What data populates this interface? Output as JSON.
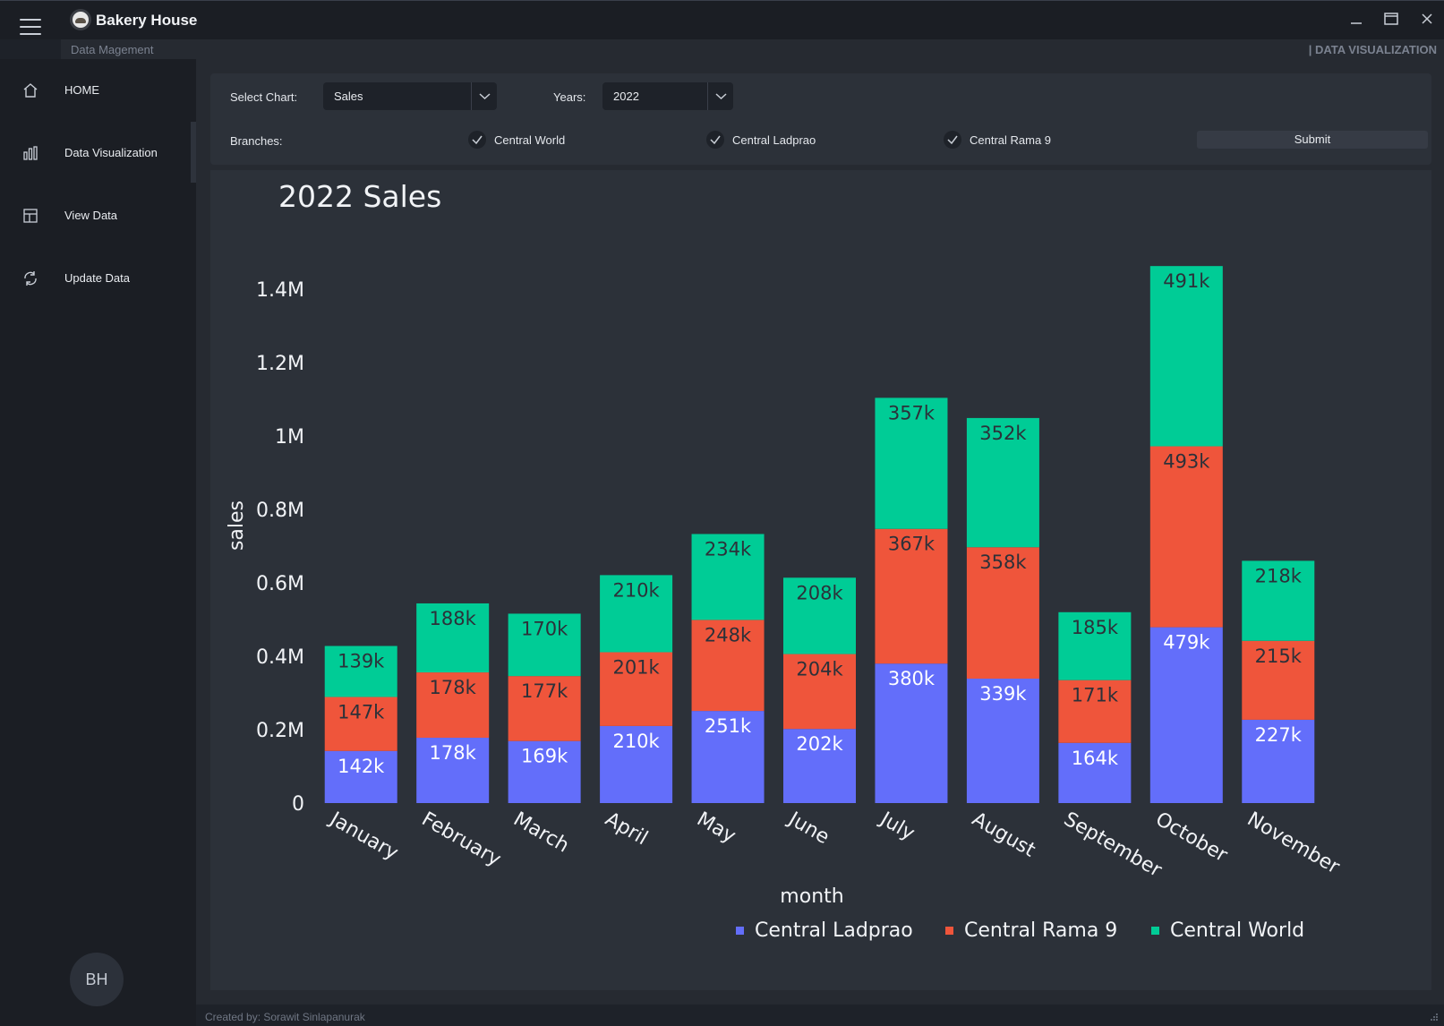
{
  "app": {
    "title": "Bakery House",
    "subtitle_left": "Data Magement",
    "subtitle_right": "| DATA VISUALIZATION"
  },
  "sidebar": {
    "items": [
      {
        "label": "HOME",
        "icon": "home-icon"
      },
      {
        "label": "Data Visualization",
        "icon": "bar-chart-icon"
      },
      {
        "label": "View Data",
        "icon": "table-icon"
      },
      {
        "label": "Update Data",
        "icon": "refresh-icon"
      }
    ],
    "active_index": 1,
    "avatar": "BH"
  },
  "controls": {
    "select_chart_label": "Select Chart:",
    "select_chart_value": "Sales",
    "years_label": "Years:",
    "years_value": "2022",
    "branches_label": "Branches:",
    "branches": [
      {
        "label": "Central World",
        "checked": true
      },
      {
        "label": "Central Ladprao",
        "checked": true
      },
      {
        "label": "Central Rama 9",
        "checked": true
      }
    ],
    "submit_label": "Submit"
  },
  "footer": {
    "text": "Created by: Sorawit Sinlapanurak"
  },
  "colors": {
    "ladprao": "#636efa",
    "rama9": "#ef553b",
    "world": "#00cc96",
    "panel": "#2c3139"
  },
  "chart_data": {
    "type": "bar",
    "stacked": true,
    "title": "2022 Sales",
    "xlabel": "month",
    "ylabel": "sales",
    "ylim": [
      0,
      1400000
    ],
    "yticks": [
      0,
      200000,
      400000,
      600000,
      800000,
      1000000,
      1200000,
      1400000
    ],
    "ytick_labels": [
      "0",
      "0.2M",
      "0.4M",
      "0.6M",
      "0.8M",
      "1M",
      "1.2M",
      "1.4M"
    ],
    "categories": [
      "January",
      "February",
      "March",
      "April",
      "May",
      "June",
      "July",
      "August",
      "September",
      "October",
      "November"
    ],
    "series": [
      {
        "name": "Central Ladprao",
        "values": [
          142000,
          178000,
          169000,
          210000,
          251000,
          202000,
          380000,
          339000,
          164000,
          479000,
          227000
        ],
        "labels": [
          "142k",
          "178k",
          "169k",
          "210k",
          "251k",
          "202k",
          "380k",
          "339k",
          "164k",
          "479k",
          "227k"
        ]
      },
      {
        "name": "Central Rama 9",
        "values": [
          147000,
          178000,
          177000,
          201000,
          248000,
          204000,
          367000,
          358000,
          171000,
          493000,
          215000
        ],
        "labels": [
          "147k",
          "178k",
          "177k",
          "201k",
          "248k",
          "204k",
          "367k",
          "358k",
          "171k",
          "493k",
          "215k"
        ]
      },
      {
        "name": "Central World",
        "values": [
          139000,
          188000,
          170000,
          210000,
          234000,
          208000,
          357000,
          352000,
          185000,
          491000,
          218000
        ],
        "labels": [
          "139k",
          "188k",
          "170k",
          "210k",
          "234k",
          "208k",
          "357k",
          "352k",
          "185k",
          "491k",
          "218k"
        ]
      }
    ],
    "legend": "bottom-center"
  }
}
